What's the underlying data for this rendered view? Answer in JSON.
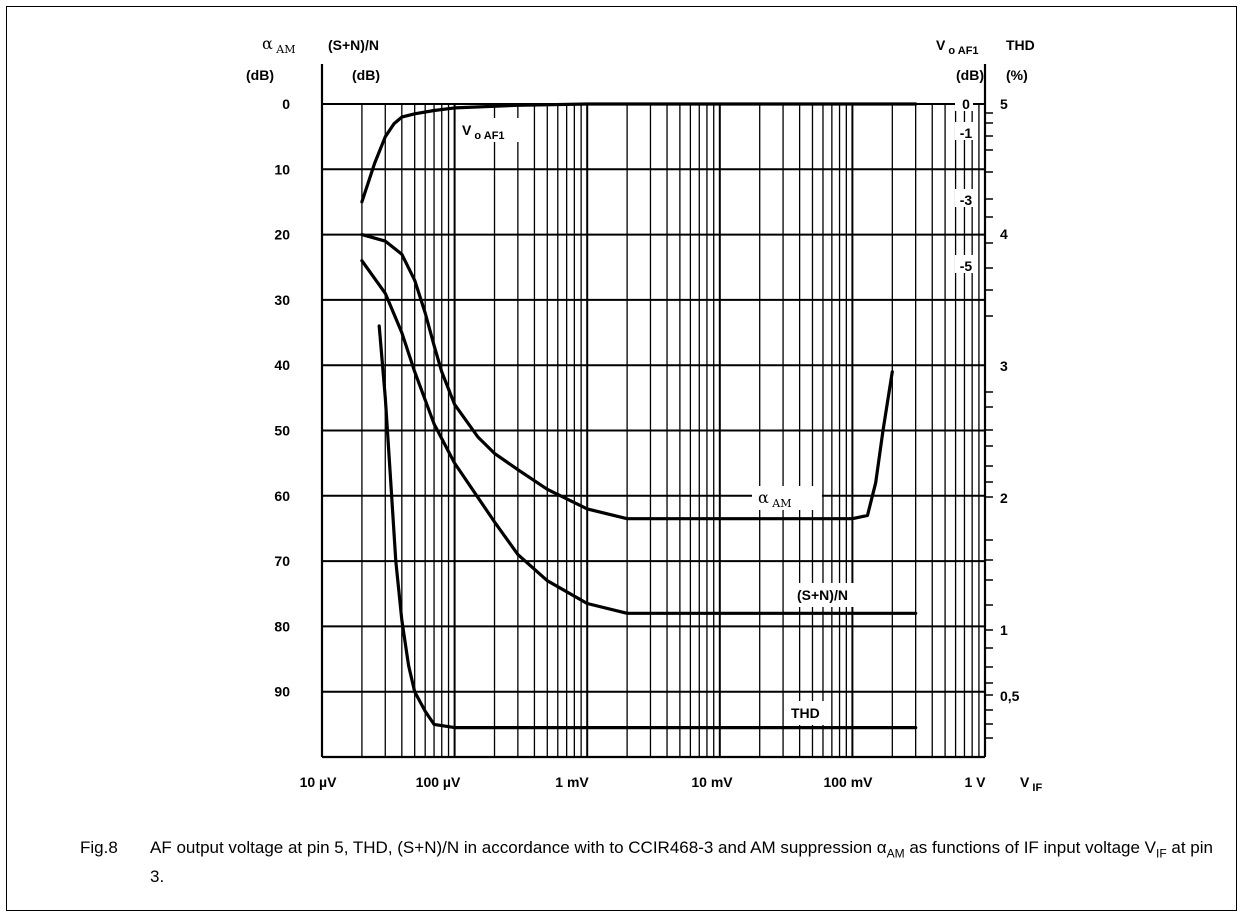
{
  "chart_data": {
    "type": "line",
    "x_scale": "log",
    "x_unit": "V",
    "x_ticks": [
      {
        "value": 1e-05,
        "label": "10 µV"
      },
      {
        "value": 0.0001,
        "label": "100 µV"
      },
      {
        "value": 0.001,
        "label": "1 mV"
      },
      {
        "value": 0.01,
        "label": "10 mV"
      },
      {
        "value": 0.1,
        "label": "100 mV"
      },
      {
        "value": 1,
        "label": "1 V"
      }
    ],
    "xlabel": "V",
    "xlabel_sub": "IF",
    "xlim": [
      1e-05,
      1
    ],
    "grid": true,
    "axes": {
      "left1": {
        "title": "α",
        "title_sub": "AM",
        "unit": "(dB)",
        "ticks": [
          "0",
          "10",
          "20",
          "30",
          "40",
          "50",
          "60",
          "70",
          "80",
          "90"
        ],
        "range": [
          0,
          100
        ],
        "inverted": true
      },
      "left2": {
        "title": "(S+N)/N",
        "unit": "(dB)"
      },
      "right1": {
        "title": "V",
        "title_sub": "o AF1",
        "unit": "(dB)",
        "ticks": [
          "0",
          "-1",
          "-3",
          "-5"
        ]
      },
      "right2": {
        "title": "THD",
        "unit": "(%)",
        "ticks": [
          "5",
          "4",
          "3",
          "2",
          "1",
          "0,5"
        ]
      }
    },
    "series": [
      {
        "name": "V",
        "name_sub": "o AF1",
        "axis": "left1",
        "x": [
          2e-05,
          2.5e-05,
          3e-05,
          3.5e-05,
          4e-05,
          5e-05,
          7e-05,
          0.0001,
          0.0003,
          0.001,
          0.01,
          0.1,
          0.3
        ],
        "y": [
          15,
          9,
          5,
          3,
          2,
          1.5,
          1,
          0.6,
          0.2,
          0,
          0,
          0,
          0
        ]
      },
      {
        "name": "α",
        "name_sub": "AM",
        "axis": "left1",
        "x": [
          2e-05,
          3e-05,
          4e-05,
          5e-05,
          6e-05,
          7e-05,
          8e-05,
          0.0001,
          0.00015,
          0.0002,
          0.0003,
          0.0005,
          0.001,
          0.002,
          0.005,
          0.01,
          0.1,
          0.13,
          0.15,
          0.17,
          0.2
        ],
        "y": [
          20,
          21,
          23,
          27,
          32,
          37,
          41,
          46,
          51,
          53.5,
          56,
          59,
          62,
          63.5,
          63.5,
          63.5,
          63.5,
          63,
          58,
          50,
          41
        ]
      },
      {
        "name": "(S+N)/N",
        "axis": "left2",
        "x": [
          2e-05,
          3e-05,
          4e-05,
          5e-05,
          7e-05,
          0.0001,
          0.0002,
          0.0003,
          0.0005,
          0.001,
          0.002,
          0.003,
          0.01,
          0.1,
          0.3
        ],
        "y": [
          24,
          29,
          35,
          41,
          49,
          55,
          64,
          69,
          73,
          76.5,
          78,
          78,
          78,
          78,
          78
        ]
      },
      {
        "name": "THD",
        "axis": "right2",
        "x": [
          2.7e-05,
          3e-05,
          3.3e-05,
          3.6e-05,
          4e-05,
          4.5e-05,
          5e-05,
          6e-05,
          7e-05,
          0.0001,
          0.0003,
          0.001,
          0.01,
          0.1,
          0.3
        ],
        "y": [
          34,
          45,
          58,
          70,
          79,
          86,
          90,
          93,
          95,
          95.5,
          95.5,
          95.5,
          95.5,
          95.5,
          95.5
        ]
      }
    ],
    "annotations": [
      {
        "text": "V",
        "sub": "o AF1",
        "series": "V"
      },
      {
        "text": "α",
        "sub": "AM",
        "series": "α"
      },
      {
        "text": "(S+N)/N",
        "series": "(S+N)/N"
      },
      {
        "text": "THD",
        "series": "THD"
      }
    ]
  },
  "caption": {
    "fig": "Fig.8",
    "t1": "AF output voltage at pin 5, THD, (S+N)/N in accordance with to CCIR468-3 and AM suppression α",
    "t1_sub": "AM",
    "t2": " as functions of IF input voltage V",
    "t2_sub": "IF",
    "t3": " at pin 3."
  }
}
